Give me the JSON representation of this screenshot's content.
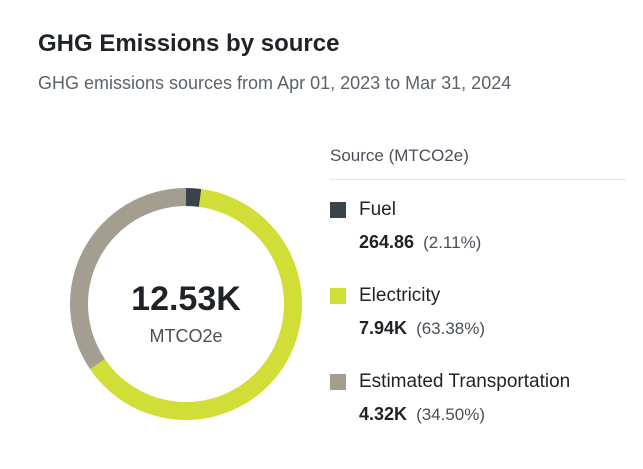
{
  "header": {
    "title": "GHG Emissions by source",
    "subtitle": "GHG emissions sources from Apr 01, 2023 to Mar 31, 2024"
  },
  "chart_data": {
    "type": "pie",
    "title": "GHG Emissions by source",
    "subtitle": "GHG emissions sources from Apr 01, 2023 to Mar 31, 2024",
    "total_label": "12.53K",
    "total_unit": "MTCO2e",
    "legend_title": "Source (MTCO2e)",
    "legend_position": "right",
    "slices": [
      {
        "name": "Fuel",
        "value": 264.86,
        "value_label": "264.86",
        "percent": 2.11,
        "percent_label": "(2.11%)",
        "color": "#3a434b"
      },
      {
        "name": "Electricity",
        "value": 7940,
        "value_label": "7.94K",
        "percent": 63.38,
        "percent_label": "(63.38%)",
        "color": "#d2de38"
      },
      {
        "name": "Estimated Transportation",
        "value": 4320,
        "value_label": "4.32K",
        "percent": 34.5,
        "percent_label": "(34.50%)",
        "color": "#a39e8f"
      }
    ]
  }
}
